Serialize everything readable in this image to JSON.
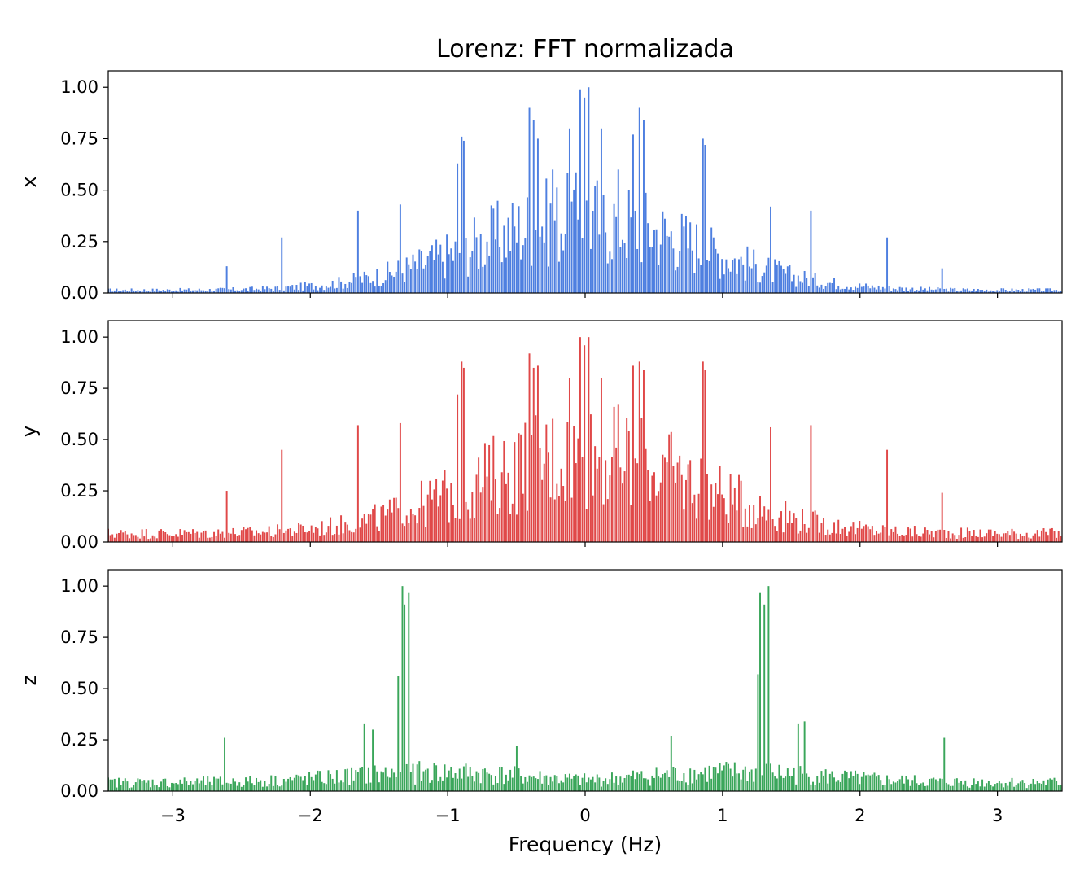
{
  "title": "Lorenz: FFT normalizada",
  "chart_data": {
    "type": "bar",
    "title": "Lorenz: FFT normalizada",
    "xlabel": "Frequency (Hz)",
    "xlim": [
      -3.47,
      3.47
    ],
    "ylim": [
      0,
      1.08
    ],
    "x_ticks": [
      -3,
      -2,
      -1,
      0,
      1,
      2,
      3
    ],
    "x_tick_labels": [
      "−3",
      "−2",
      "−1",
      "0",
      "1",
      "2",
      "3"
    ],
    "y_ticks": [
      0,
      0.25,
      0.5,
      0.75,
      1.0
    ],
    "y_tick_labels": [
      "0.00",
      "0.25",
      "0.50",
      "0.75",
      "1.00"
    ],
    "sharex": true,
    "bar_spacing_hz": 0.0154,
    "grid": false,
    "panels": [
      {
        "ylabel": "x",
        "color": "#4e7fe0",
        "peaks": [
          {
            "f": 0.03,
            "v": 1.0
          },
          {
            "f": -0.03,
            "v": 0.99
          },
          {
            "f": 0.0,
            "v": 0.95
          },
          {
            "f": 0.4,
            "v": 0.9
          },
          {
            "f": -0.4,
            "v": 0.9
          },
          {
            "f": 0.43,
            "v": 0.84
          },
          {
            "f": -0.37,
            "v": 0.84
          },
          {
            "f": -0.9,
            "v": 0.76
          },
          {
            "f": 0.86,
            "v": 0.75
          },
          {
            "f": 0.88,
            "v": 0.72
          },
          {
            "f": -0.88,
            "v": 0.74
          },
          {
            "f": -0.93,
            "v": 0.63
          },
          {
            "f": 0.35,
            "v": 0.77
          },
          {
            "f": -0.35,
            "v": 0.75
          },
          {
            "f": 0.12,
            "v": 0.8
          },
          {
            "f": -0.12,
            "v": 0.8
          },
          {
            "f": -0.24,
            "v": 0.6
          },
          {
            "f": 0.24,
            "v": 0.6
          },
          {
            "f": -1.35,
            "v": 0.43
          },
          {
            "f": 1.35,
            "v": 0.42
          },
          {
            "f": -1.65,
            "v": 0.4
          },
          {
            "f": 1.65,
            "v": 0.4
          },
          {
            "f": -1.35,
            "v": 0.43
          },
          {
            "f": -2.2,
            "v": 0.27
          },
          {
            "f": 2.2,
            "v": 0.27
          },
          {
            "f": -2.6,
            "v": 0.13
          },
          {
            "f": 2.6,
            "v": 0.12
          }
        ]
      },
      {
        "ylabel": "y",
        "color": "#e04848",
        "peaks": [
          {
            "f": 0.03,
            "v": 1.0
          },
          {
            "f": -0.03,
            "v": 1.0
          },
          {
            "f": 0.0,
            "v": 0.96
          },
          {
            "f": 0.4,
            "v": 0.88
          },
          {
            "f": -0.4,
            "v": 0.92
          },
          {
            "f": 0.43,
            "v": 0.84
          },
          {
            "f": -0.37,
            "v": 0.85
          },
          {
            "f": -0.9,
            "v": 0.88
          },
          {
            "f": 0.86,
            "v": 0.88
          },
          {
            "f": 0.88,
            "v": 0.84
          },
          {
            "f": -0.88,
            "v": 0.85
          },
          {
            "f": -0.93,
            "v": 0.72
          },
          {
            "f": 0.35,
            "v": 0.86
          },
          {
            "f": -0.35,
            "v": 0.86
          },
          {
            "f": 0.12,
            "v": 0.8
          },
          {
            "f": -0.12,
            "v": 0.8
          },
          {
            "f": -1.65,
            "v": 0.57
          },
          {
            "f": 1.65,
            "v": 0.57
          },
          {
            "f": -1.35,
            "v": 0.58
          },
          {
            "f": 1.35,
            "v": 0.56
          },
          {
            "f": -2.2,
            "v": 0.45
          },
          {
            "f": 2.2,
            "v": 0.45
          },
          {
            "f": -2.6,
            "v": 0.25
          },
          {
            "f": 2.6,
            "v": 0.24
          }
        ]
      },
      {
        "ylabel": "z",
        "color": "#3aa65a",
        "peaks": [
          {
            "f": -1.33,
            "v": 1.0
          },
          {
            "f": 1.33,
            "v": 1.0
          },
          {
            "f": -1.28,
            "v": 0.97
          },
          {
            "f": 1.28,
            "v": 0.97
          },
          {
            "f": -1.31,
            "v": 0.91
          },
          {
            "f": 1.31,
            "v": 0.91
          },
          {
            "f": -1.29,
            "v": 0.71
          },
          {
            "f": 1.3,
            "v": 0.72
          },
          {
            "f": -1.36,
            "v": 0.56
          },
          {
            "f": 1.26,
            "v": 0.57
          },
          {
            "f": -1.6,
            "v": 0.33
          },
          {
            "f": 1.6,
            "v": 0.34
          },
          {
            "f": -1.55,
            "v": 0.3
          },
          {
            "f": 1.55,
            "v": 0.33
          },
          {
            "f": -2.62,
            "v": 0.26
          },
          {
            "f": 2.62,
            "v": 0.26
          },
          {
            "f": -0.5,
            "v": 0.22
          },
          {
            "f": 0.63,
            "v": 0.27
          }
        ]
      }
    ]
  }
}
